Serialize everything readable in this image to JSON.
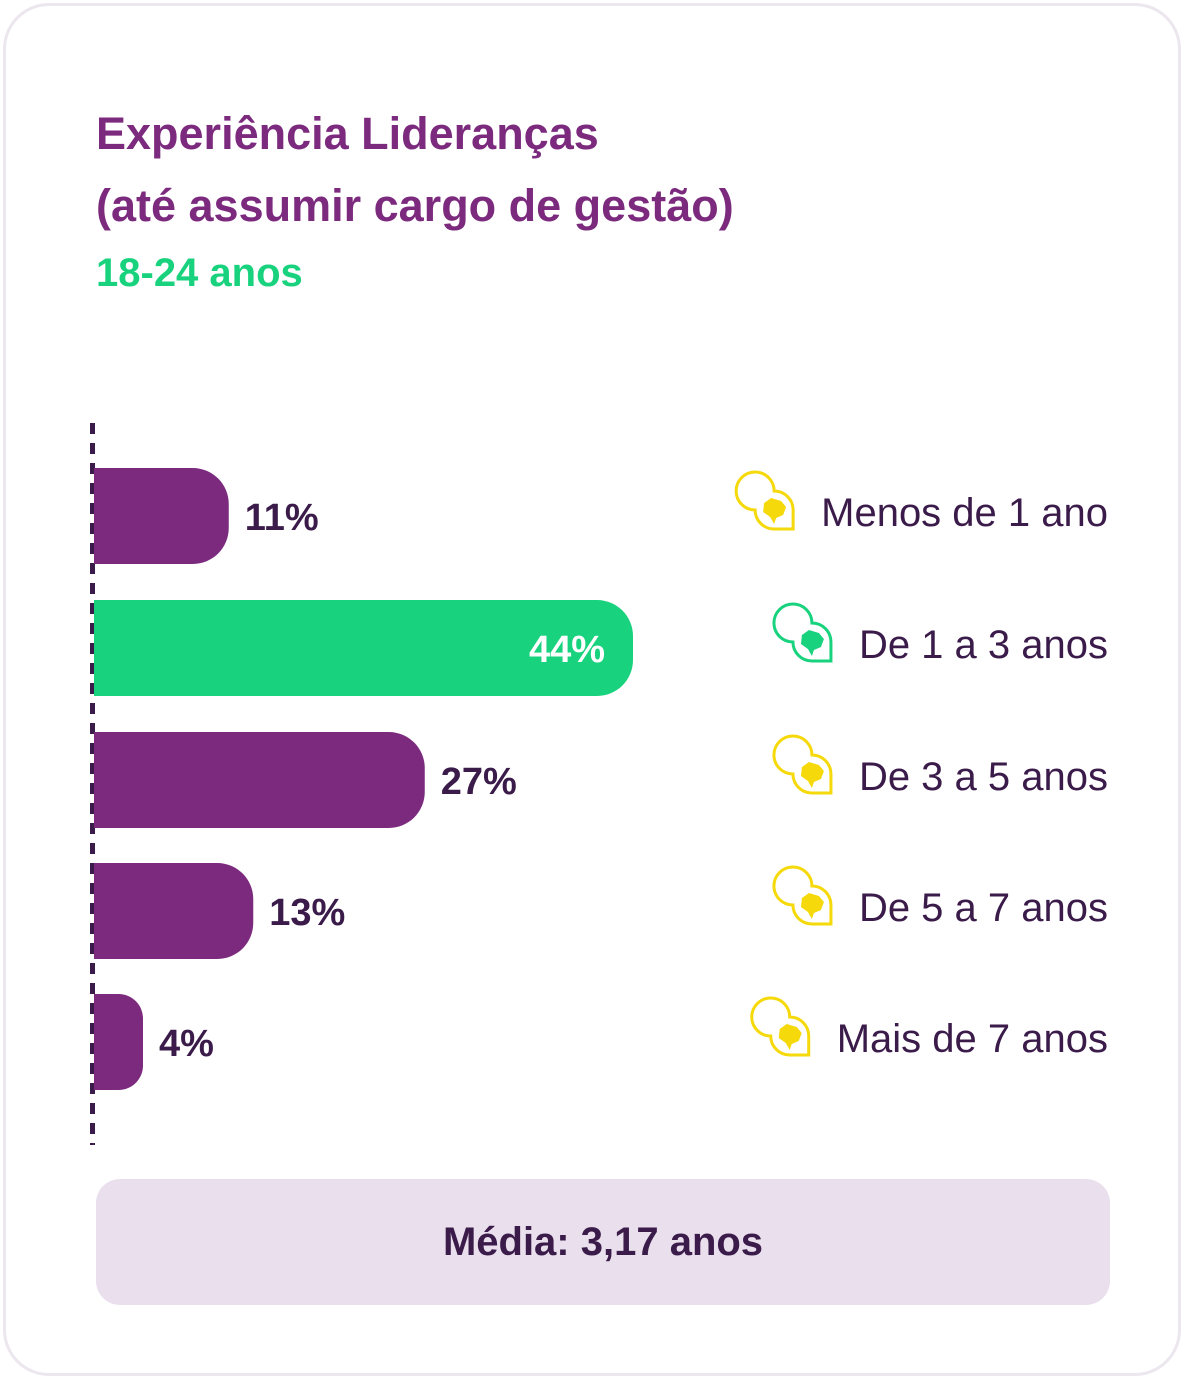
{
  "header": {
    "title_line1": "Experiência Lideranças",
    "title_line2": "(até assumir cargo de gestão)",
    "subtitle": "18-24 anos"
  },
  "summary": {
    "text": "Média: 3,17 anos"
  },
  "colors": {
    "title": "#7c2a7e",
    "subtitle": "#19d27e",
    "bar_default": "#7c2a7e",
    "bar_highlight": "#19d27e",
    "label_dark": "#3a1b4a",
    "label_on_bar": "#ffffff",
    "summary_bg": "#eadfec",
    "icon_default": "#f5d90a",
    "icon_highlight": "#19d27e"
  },
  "icons": {
    "category_marker": "brazil-map-pin-icon"
  },
  "chart_data": {
    "type": "bar",
    "orientation": "horizontal",
    "categories": [
      "Menos de 1 ano",
      "De 1 a 3 anos",
      "De 3 a 5 anos",
      "De 5 a 7 anos",
      "Mais de 7 anos"
    ],
    "values": [
      11,
      44,
      27,
      13,
      4
    ],
    "value_labels": [
      "11%",
      "44%",
      "27%",
      "13%",
      "4%"
    ],
    "highlight_index": 1,
    "unit": "%",
    "xlim": [
      0,
      44
    ],
    "grid": false,
    "legend": "none"
  }
}
